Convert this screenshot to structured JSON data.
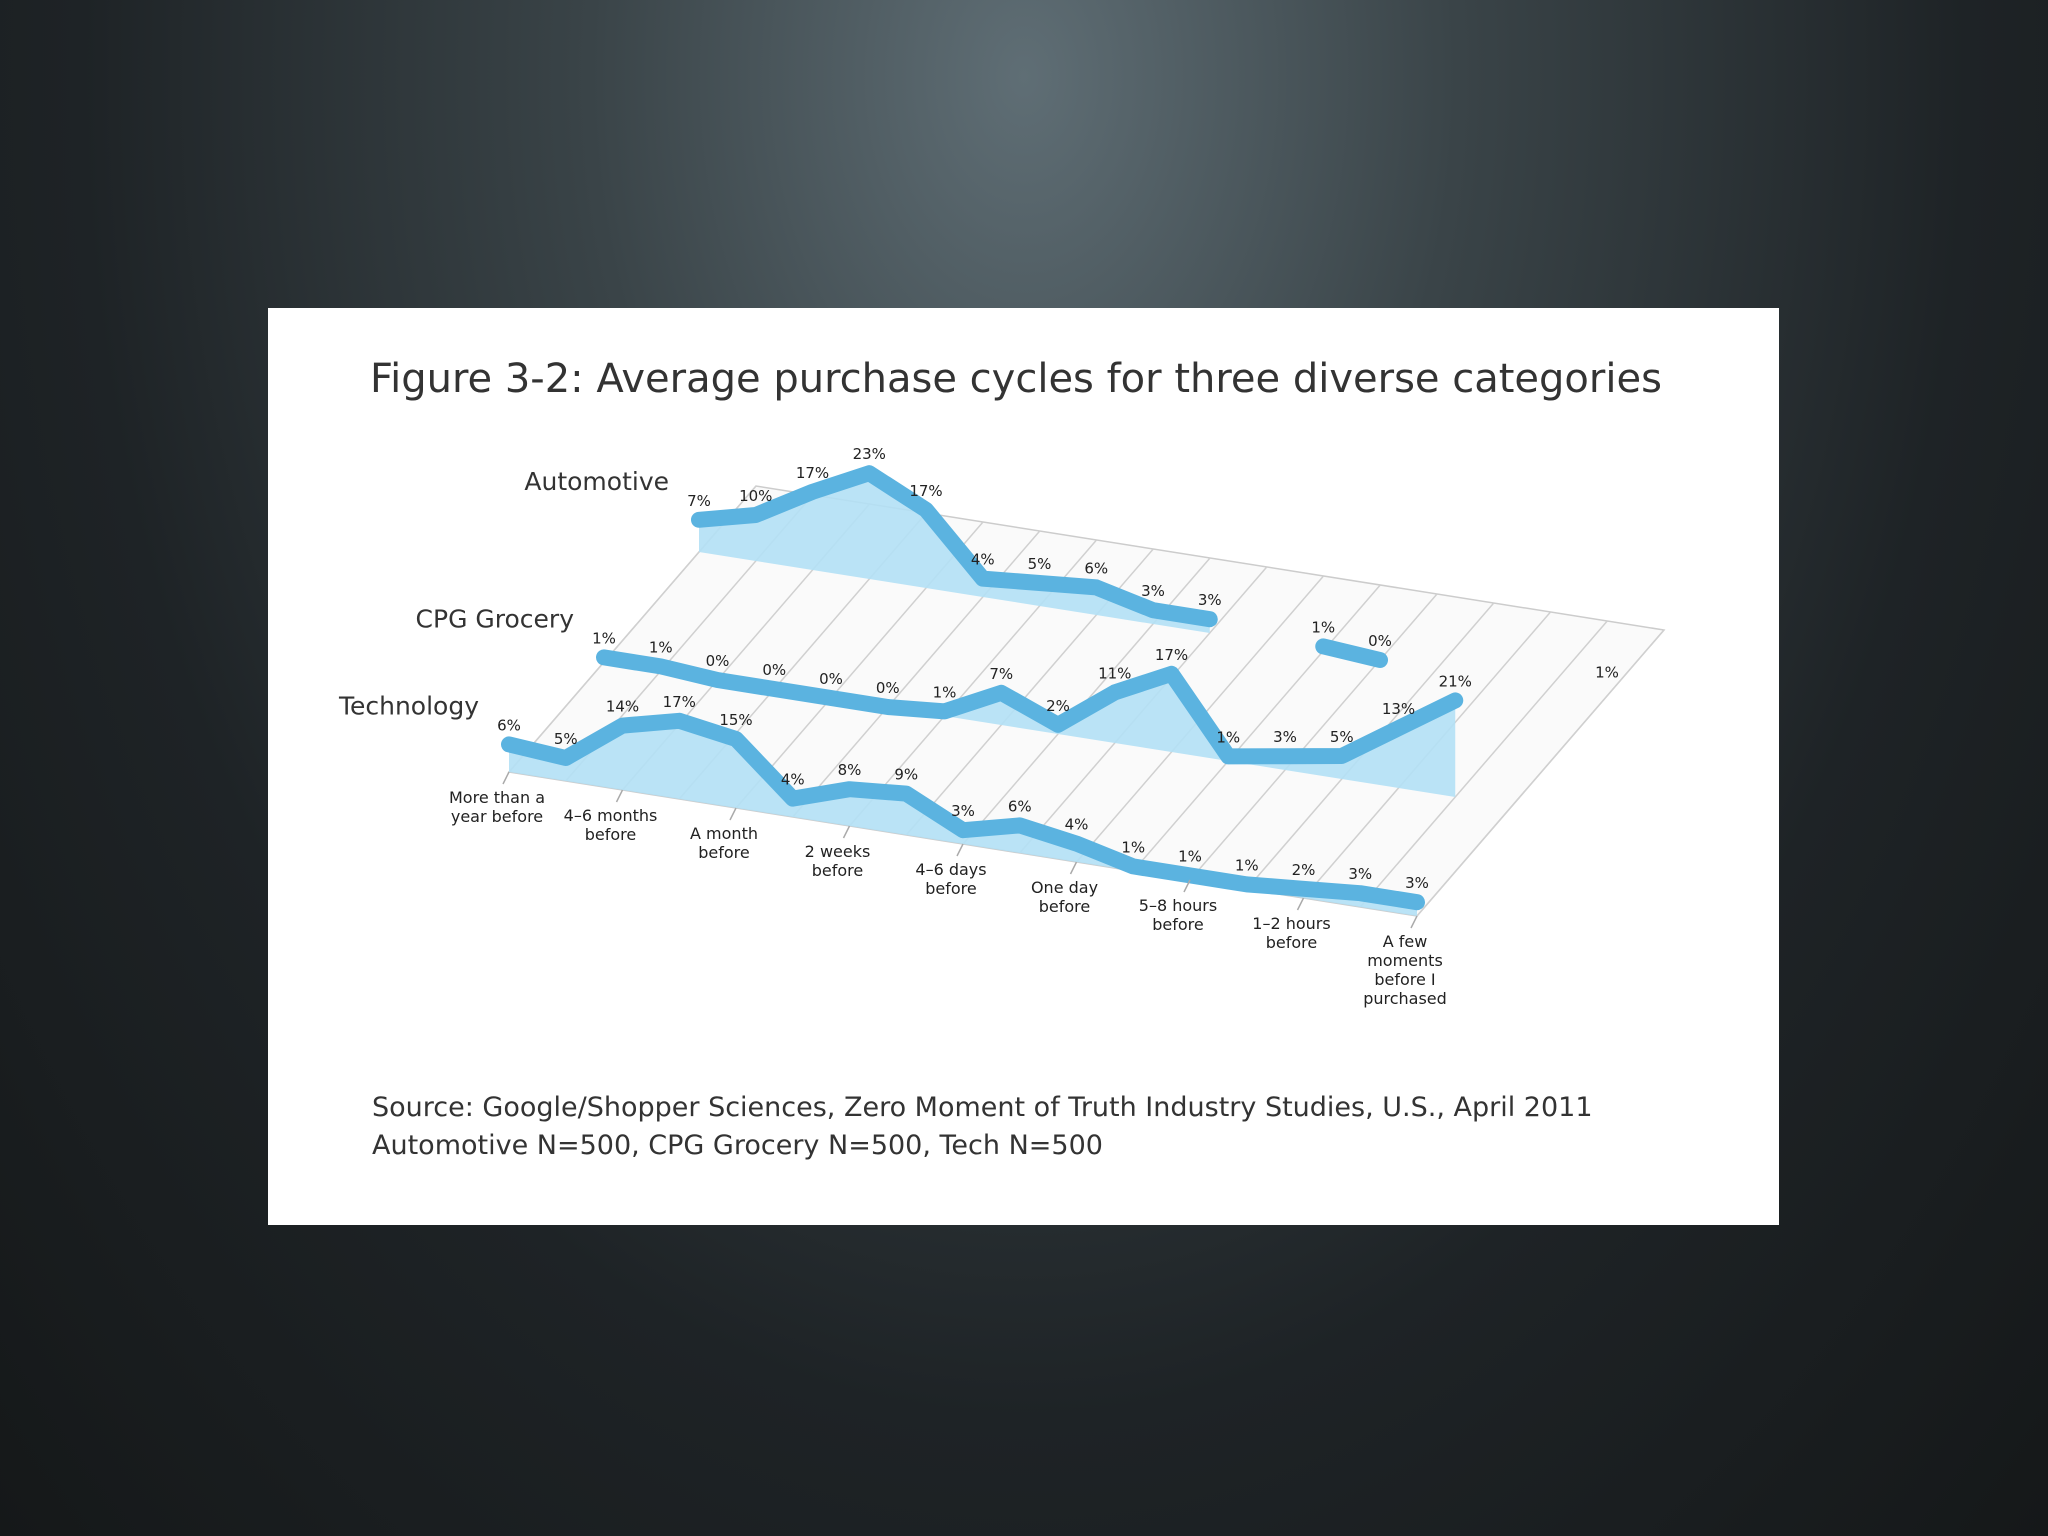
{
  "chart_data": {
    "type": "ribbon",
    "title": "Figure 3-2: Average purchase cycles for three diverse categories",
    "categories": [
      "More than a year before",
      null,
      "4–6 months before",
      null,
      "A month before",
      null,
      "2 weeks before",
      null,
      "4–6 days before",
      null,
      "One day before",
      null,
      "5–8 hours before",
      null,
      "1–2 hours before",
      null,
      "A few moments before I purchased"
    ],
    "series": [
      {
        "name": "Automotive",
        "color": "#5bb3e0",
        "fill": "#b3e0f5",
        "values": [
          7,
          10,
          17,
          23,
          17,
          4,
          5,
          6,
          3,
          3,
          null,
          1,
          0,
          null,
          null,
          null,
          1
        ],
        "value_labels": [
          "7%",
          "10%",
          "17%",
          "23%",
          "17%",
          "4%",
          "5%",
          "6%",
          "3%",
          "3%",
          null,
          "1%",
          "0%",
          null,
          null,
          null,
          "1%"
        ]
      },
      {
        "name": "CPG Grocery",
        "color": "#5bb3e0",
        "fill": "#b3e0f5",
        "values": [
          1,
          1,
          0,
          0,
          0,
          0,
          1,
          7,
          2,
          11,
          17,
          1,
          3,
          5,
          13,
          21,
          null
        ],
        "value_labels": [
          "1%",
          "1%",
          "0%",
          "0%",
          "0%",
          "0%",
          "1%",
          "7%",
          "2%",
          "11%",
          "17%",
          "1%",
          "3%",
          "5%",
          "13%",
          "21%",
          null
        ]
      },
      {
        "name": "Technology",
        "color": "#5bb3e0",
        "fill": "#b3e0f5",
        "values": [
          6,
          5,
          14,
          17,
          15,
          4,
          8,
          9,
          3,
          6,
          4,
          1,
          1,
          1,
          2,
          3,
          3
        ],
        "value_labels": [
          "6%",
          "5%",
          "14%",
          "17%",
          "15%",
          "4%",
          "8%",
          "9%",
          "3%",
          "6%",
          "4%",
          "1%",
          "1%",
          "1%",
          "2%",
          "3%",
          "3%"
        ]
      }
    ],
    "source": [
      "Source: Google/Shopper Sciences, Zero Moment of Truth Industry Studies, U.S., April 2011",
      "Automotive N=500, CPG Grocery N=500, Tech N=500"
    ]
  }
}
